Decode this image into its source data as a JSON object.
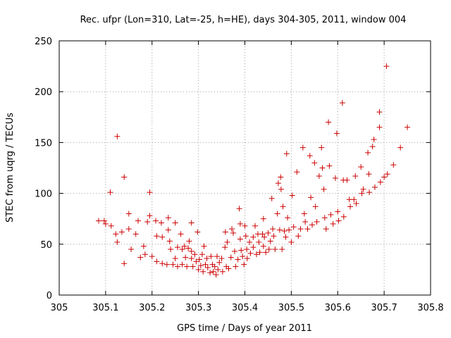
{
  "chart_data": {
    "type": "scatter",
    "title": "Rec. ufpr (Lon=310, Lat=-25, h=HE), days 304-305, 2011, window 004",
    "xlabel": "GPS time / Days of year 2011",
    "ylabel": "STEC from uqrg / TECUs",
    "xlim": [
      305,
      305.8
    ],
    "ylim": [
      0,
      250
    ],
    "xticks": [
      "305",
      "305.1",
      "305.2",
      "305.3",
      "305.4",
      "305.5",
      "305.6",
      "305.7",
      "305.8"
    ],
    "yticks": [
      "0",
      "50",
      "100",
      "150",
      "200",
      "250"
    ],
    "grid": true,
    "marker_color": "#cc0000",
    "series": [
      {
        "marker": "plus",
        "points": [
          [
            305.085,
            73
          ],
          [
            305.097,
            73
          ],
          [
            305.1,
            70
          ],
          [
            305.11,
            101
          ],
          [
            305.112,
            68
          ],
          [
            305.125,
            156
          ],
          [
            305.122,
            60
          ],
          [
            305.125,
            52
          ],
          [
            305.135,
            62
          ],
          [
            305.14,
            116
          ],
          [
            305.14,
            31
          ],
          [
            305.15,
            80
          ],
          [
            305.15,
            65
          ],
          [
            305.155,
            45
          ],
          [
            305.165,
            60
          ],
          [
            305.17,
            73
          ],
          [
            305.175,
            37
          ],
          [
            305.182,
            48
          ],
          [
            305.185,
            40
          ],
          [
            305.19,
            72
          ],
          [
            305.195,
            101
          ],
          [
            305.195,
            78
          ],
          [
            305.2,
            38
          ],
          [
            305.208,
            73
          ],
          [
            305.21,
            58
          ],
          [
            305.21,
            33
          ],
          [
            305.22,
            71
          ],
          [
            305.222,
            57
          ],
          [
            305.222,
            31
          ],
          [
            305.232,
            30
          ],
          [
            305.235,
            76
          ],
          [
            305.235,
            64
          ],
          [
            305.238,
            53
          ],
          [
            305.24,
            45
          ],
          [
            305.245,
            30
          ],
          [
            305.25,
            71
          ],
          [
            305.25,
            36
          ],
          [
            305.255,
            47
          ],
          [
            305.255,
            28
          ],
          [
            305.262,
            60
          ],
          [
            305.265,
            45
          ],
          [
            305.265,
            30
          ],
          [
            305.27,
            48
          ],
          [
            305.272,
            37
          ],
          [
            305.275,
            28
          ],
          [
            305.278,
            46
          ],
          [
            305.28,
            53
          ],
          [
            305.285,
            71
          ],
          [
            305.285,
            43
          ],
          [
            305.285,
            36
          ],
          [
            305.288,
            28
          ],
          [
            305.292,
            40
          ],
          [
            305.295,
            33
          ],
          [
            305.298,
            62
          ],
          [
            305.3,
            25
          ],
          [
            305.302,
            35
          ],
          [
            305.305,
            29
          ],
          [
            305.308,
            40
          ],
          [
            305.31,
            23
          ],
          [
            305.312,
            48
          ],
          [
            305.315,
            30
          ],
          [
            305.318,
            36
          ],
          [
            305.32,
            27
          ],
          [
            305.325,
            22
          ],
          [
            305.327,
            38
          ],
          [
            305.33,
            30
          ],
          [
            305.332,
            23
          ],
          [
            305.335,
            28
          ],
          [
            305.338,
            20
          ],
          [
            305.34,
            38
          ],
          [
            305.342,
            25
          ],
          [
            305.345,
            32
          ],
          [
            305.35,
            36
          ],
          [
            305.352,
            23
          ],
          [
            305.357,
            47
          ],
          [
            305.358,
            62
          ],
          [
            305.36,
            28
          ],
          [
            305.362,
            52
          ],
          [
            305.365,
            26
          ],
          [
            305.37,
            37
          ],
          [
            305.372,
            65
          ],
          [
            305.375,
            61
          ],
          [
            305.378,
            43
          ],
          [
            305.38,
            28
          ],
          [
            305.385,
            35
          ],
          [
            305.388,
            85
          ],
          [
            305.39,
            70
          ],
          [
            305.39,
            55
          ],
          [
            305.392,
            44
          ],
          [
            305.395,
            38
          ],
          [
            305.398,
            30
          ],
          [
            305.4,
            68
          ],
          [
            305.402,
            58
          ],
          [
            305.404,
            45
          ],
          [
            305.405,
            36
          ],
          [
            305.41,
            52
          ],
          [
            305.412,
            41
          ],
          [
            305.418,
            57
          ],
          [
            305.418,
            47
          ],
          [
            305.422,
            68
          ],
          [
            305.425,
            40
          ],
          [
            305.428,
            60
          ],
          [
            305.43,
            52
          ],
          [
            305.432,
            42
          ],
          [
            305.438,
            60
          ],
          [
            305.44,
            75
          ],
          [
            305.44,
            48
          ],
          [
            305.442,
            57
          ],
          [
            305.445,
            42
          ],
          [
            305.45,
            61
          ],
          [
            305.452,
            45
          ],
          [
            305.455,
            53
          ],
          [
            305.458,
            95
          ],
          [
            305.46,
            65
          ],
          [
            305.462,
            58
          ],
          [
            305.465,
            45
          ],
          [
            305.47,
            80
          ],
          [
            305.472,
            110
          ],
          [
            305.475,
            64
          ],
          [
            305.477,
            116
          ],
          [
            305.478,
            104
          ],
          [
            305.48,
            45
          ],
          [
            305.482,
            87
          ],
          [
            305.485,
            63
          ],
          [
            305.488,
            57
          ],
          [
            305.49,
            139
          ],
          [
            305.492,
            76
          ],
          [
            305.495,
            64
          ],
          [
            305.5,
            52
          ],
          [
            305.502,
            98
          ],
          [
            305.505,
            67
          ],
          [
            305.512,
            121
          ],
          [
            305.515,
            58
          ],
          [
            305.52,
            65
          ],
          [
            305.525,
            145
          ],
          [
            305.528,
            80
          ],
          [
            305.53,
            72
          ],
          [
            305.535,
            65
          ],
          [
            305.54,
            137
          ],
          [
            305.542,
            96
          ],
          [
            305.545,
            69
          ],
          [
            305.55,
            130
          ],
          [
            305.552,
            87
          ],
          [
            305.555,
            72
          ],
          [
            305.56,
            117
          ],
          [
            305.565,
            145
          ],
          [
            305.567,
            125
          ],
          [
            305.57,
            104
          ],
          [
            305.572,
            76
          ],
          [
            305.575,
            65
          ],
          [
            305.58,
            170
          ],
          [
            305.582,
            127
          ],
          [
            305.585,
            79
          ],
          [
            305.59,
            70
          ],
          [
            305.595,
            115
          ],
          [
            305.598,
            159
          ],
          [
            305.6,
            82
          ],
          [
            305.602,
            73
          ],
          [
            305.61,
            189
          ],
          [
            305.612,
            113
          ],
          [
            305.613,
            77
          ],
          [
            305.62,
            113
          ],
          [
            305.625,
            94
          ],
          [
            305.627,
            87
          ],
          [
            305.635,
            94
          ],
          [
            305.638,
            117
          ],
          [
            305.64,
            90
          ],
          [
            305.65,
            126
          ],
          [
            305.652,
            100
          ],
          [
            305.655,
            104
          ],
          [
            305.665,
            140
          ],
          [
            305.667,
            119
          ],
          [
            305.668,
            101
          ],
          [
            305.675,
            146
          ],
          [
            305.678,
            153
          ],
          [
            305.68,
            106
          ],
          [
            305.69,
            180
          ],
          [
            305.69,
            165
          ],
          [
            305.692,
            111
          ],
          [
            305.7,
            116
          ],
          [
            305.705,
            225
          ],
          [
            305.707,
            119
          ],
          [
            305.72,
            128
          ],
          [
            305.735,
            145
          ],
          [
            305.75,
            165
          ]
        ]
      }
    ]
  }
}
